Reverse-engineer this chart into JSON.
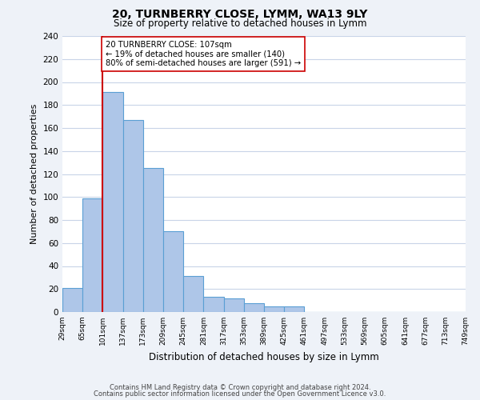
{
  "title": "20, TURNBERRY CLOSE, LYMM, WA13 9LY",
  "subtitle": "Size of property relative to detached houses in Lymm",
  "xlabel": "Distribution of detached houses by size in Lymm",
  "ylabel": "Number of detached properties",
  "bin_labels": [
    "29sqm",
    "65sqm",
    "101sqm",
    "137sqm",
    "173sqm",
    "209sqm",
    "245sqm",
    "281sqm",
    "317sqm",
    "353sqm",
    "389sqm",
    "425sqm",
    "461sqm",
    "497sqm",
    "533sqm",
    "569sqm",
    "605sqm",
    "641sqm",
    "677sqm",
    "713sqm",
    "749sqm"
  ],
  "bar_heights": [
    21,
    99,
    191,
    167,
    125,
    70,
    31,
    13,
    12,
    8,
    5,
    5,
    0,
    0,
    0,
    0,
    0,
    0,
    0,
    0
  ],
  "bar_color": "#aec6e8",
  "bar_edge_color": "#5a9fd4",
  "vline_x": 2.0,
  "vline_color": "#cc0000",
  "ylim": [
    0,
    240
  ],
  "yticks": [
    0,
    20,
    40,
    60,
    80,
    100,
    120,
    140,
    160,
    180,
    200,
    220,
    240
  ],
  "annotation_title": "20 TURNBERRY CLOSE: 107sqm",
  "annotation_line1": "← 19% of detached houses are smaller (140)",
  "annotation_line2": "80% of semi-detached houses are larger (591) →",
  "footer_line1": "Contains HM Land Registry data © Crown copyright and database right 2024.",
  "footer_line2": "Contains public sector information licensed under the Open Government Licence v3.0.",
  "background_color": "#eef2f8",
  "plot_bg_color": "#ffffff",
  "grid_color": "#c8d4e8"
}
